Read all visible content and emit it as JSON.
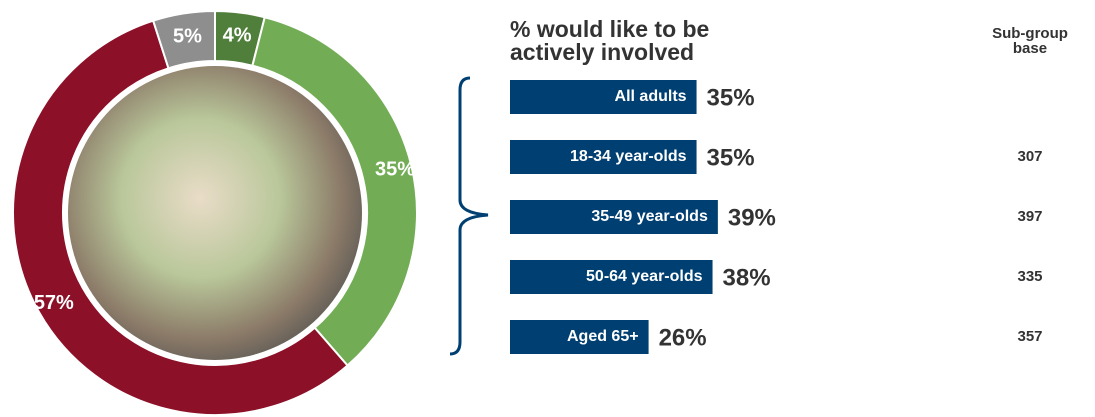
{
  "chart_data": [
    {
      "type": "donut",
      "categories": [
        null,
        null,
        null,
        null
      ],
      "values": [
        4,
        35,
        57,
        5
      ],
      "value_labels": [
        "4%",
        "35%",
        "57%",
        "5%"
      ],
      "colors": [
        "#4f7f3a",
        "#72ad55",
        "#8c1027",
        "#8e8e8e"
      ]
    },
    {
      "type": "hbar",
      "title": "% would like to be actively involved",
      "categories": [
        "All adults",
        "18-34 year-olds",
        "35-49 year-olds",
        "50-64 year-olds",
        "Aged 65+"
      ],
      "values": [
        35,
        35,
        39,
        38,
        26
      ],
      "value_labels": [
        "35%",
        "35%",
        "39%",
        "38%",
        "26%"
      ],
      "color": "#003f72",
      "base_title": "Sub-group base",
      "bases": [
        null,
        307,
        397,
        335,
        357
      ]
    }
  ]
}
